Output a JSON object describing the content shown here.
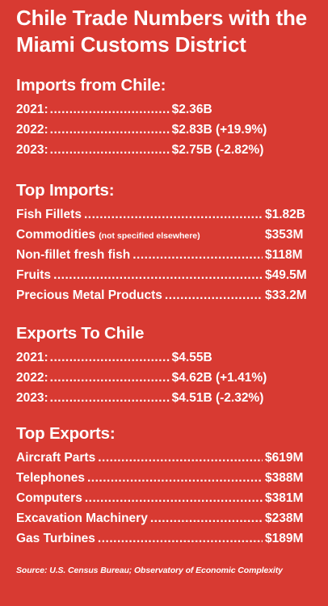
{
  "title": "Chile Trade Numbers with the Miami Customs District",
  "imports_from_chile": {
    "heading": "Imports from Chile:",
    "rows": [
      {
        "label": "2021:",
        "value": "$2.36B"
      },
      {
        "label": "2022:",
        "value": "$2.83B (+19.9%)"
      },
      {
        "label": "2023:",
        "value": "$2.75B (-2.82%)"
      }
    ]
  },
  "top_imports": {
    "heading": "Top Imports:",
    "items": [
      {
        "label": "Fish Fillets",
        "note": "",
        "value": "$1.82B"
      },
      {
        "label": "Commodities",
        "note": "(not specified elsewhere)",
        "value": "$353M"
      },
      {
        "label": "Non-fillet fresh fish",
        "note": "",
        "value": "$118M"
      },
      {
        "label": "Fruits",
        "note": "",
        "value": "$49.5M"
      },
      {
        "label": "Precious Metal Products",
        "note": "",
        "value": "$33.2M"
      }
    ]
  },
  "exports_to_chile": {
    "heading": "Exports To Chile",
    "rows": [
      {
        "label": "2021:",
        "value": "$4.55B"
      },
      {
        "label": "2022:",
        "value": "$4.62B (+1.41%)"
      },
      {
        "label": "2023:",
        "value": "$4.51B (-2.32%)"
      }
    ]
  },
  "top_exports": {
    "heading": "Top Exports:",
    "items": [
      {
        "label": "Aircraft Parts",
        "note": "",
        "value": "$619M"
      },
      {
        "label": "Telephones",
        "note": "",
        "value": "$388M"
      },
      {
        "label": "Computers",
        "note": "",
        "value": "$381M"
      },
      {
        "label": "Excavation Machinery",
        "note": "",
        "value": "$238M"
      },
      {
        "label": "Gas Turbines",
        "note": "",
        "value": "$189M"
      }
    ]
  },
  "source": "Source: U.S. Census Bureau; Observatory of Economic Complexity",
  "colors": {
    "background": "#d83a32",
    "text": "#ffffff"
  }
}
